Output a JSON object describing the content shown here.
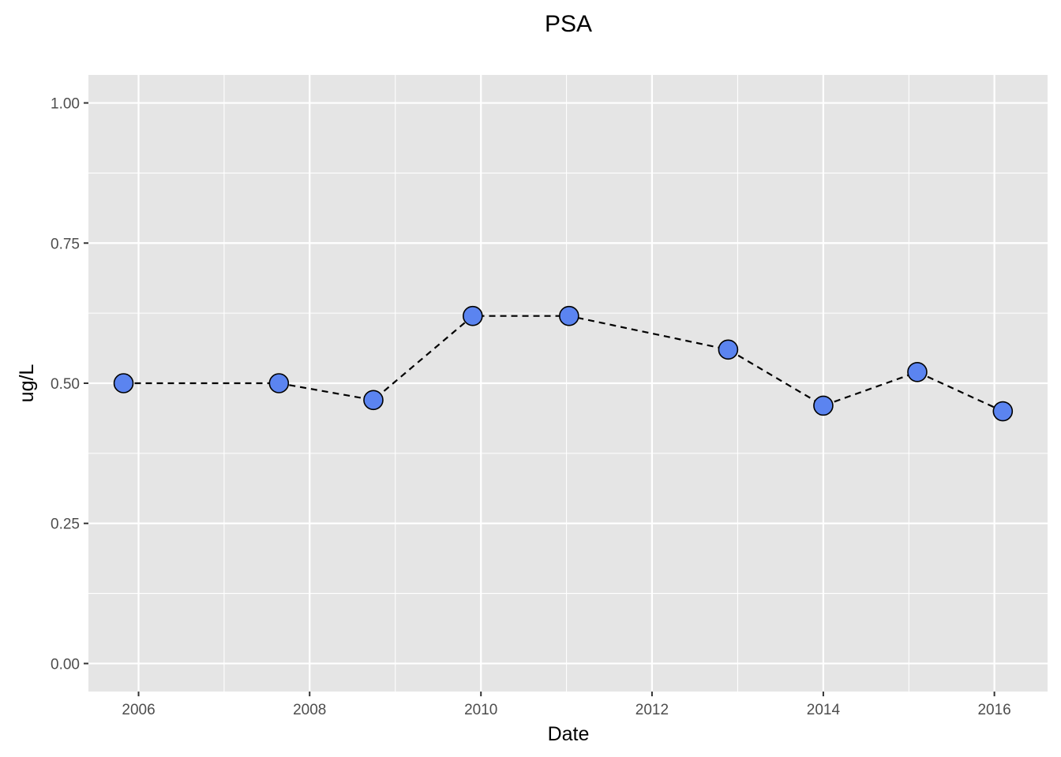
{
  "chart_data": {
    "type": "line",
    "title": "PSA",
    "xlabel": "Date",
    "ylabel": "ug/L",
    "xlim": [
      "2005-06-01",
      "2016-08-15"
    ],
    "ylim": [
      -0.05,
      1.05
    ],
    "x_ticks": [
      "2006",
      "2008",
      "2010",
      "2012",
      "2014",
      "2016"
    ],
    "y_ticks": [
      "0.00",
      "0.25",
      "0.50",
      "0.75",
      "1.00"
    ],
    "grid": true,
    "legend": "none",
    "line_style": "dashed",
    "point_color": "#5b84f0",
    "line_color": "#000000",
    "panel_color": "#e5e5e5",
    "series": [
      {
        "x": [
          "2005-10-29",
          "2007-08-23",
          "2008-09-29",
          "2009-11-27",
          "2011-01-12",
          "2012-11-21",
          "2014-01-01",
          "2015-02-06",
          "2016-02-06"
        ],
        "values": [
          0.5,
          0.5,
          0.47,
          0.62,
          0.62,
          0.56,
          0.46,
          0.52,
          0.45
        ]
      }
    ]
  }
}
